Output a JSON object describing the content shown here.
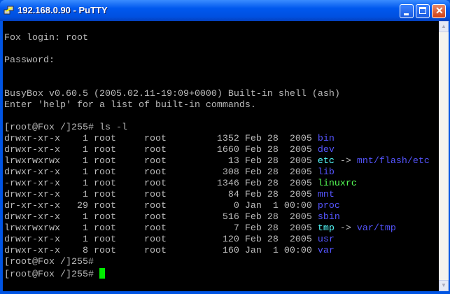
{
  "window": {
    "title": "192.168.0.90 - PuTTY",
    "icon": "putty-icon"
  },
  "colors": {
    "default": "#bbbbbb",
    "directory": "#5555ff",
    "symlink": "#55ffff",
    "executable": "#55ff55",
    "cursor": "#00ee00"
  },
  "terminal": {
    "lines": [
      [],
      [
        {
          "t": "Fox login: root"
        }
      ],
      [],
      [
        {
          "t": "Password:"
        }
      ],
      [],
      [],
      [
        {
          "t": "BusyBox v0.60.5 (2005.02.11-19:09+0000) Built-in shell (ash)"
        }
      ],
      [
        {
          "t": "Enter 'help' for a list of built-in commands."
        }
      ],
      [],
      [
        {
          "t": "[root@Fox /]255# ls -l"
        }
      ],
      [
        {
          "t": "drwxr-xr-x    1 root     root         1352 Feb 28  2005 "
        },
        {
          "t": "bin",
          "c": "directory"
        }
      ],
      [
        {
          "t": "drwxr-xr-x    1 root     root         1660 Feb 28  2005 "
        },
        {
          "t": "dev",
          "c": "directory"
        }
      ],
      [
        {
          "t": "lrwxrwxrwx    1 root     root           13 Feb 28  2005 "
        },
        {
          "t": "etc",
          "c": "symlink"
        },
        {
          "t": " -> "
        },
        {
          "t": "mnt/flash/etc",
          "c": "directory"
        }
      ],
      [
        {
          "t": "drwxr-xr-x    1 root     root          308 Feb 28  2005 "
        },
        {
          "t": "lib",
          "c": "directory"
        }
      ],
      [
        {
          "t": "-rwxr-xr-x    1 root     root         1346 Feb 28  2005 "
        },
        {
          "t": "linuxrc",
          "c": "executable"
        }
      ],
      [
        {
          "t": "drwxr-xr-x    1 root     root           84 Feb 28  2005 "
        },
        {
          "t": "mnt",
          "c": "directory"
        }
      ],
      [
        {
          "t": "dr-xr-xr-x   29 root     root            0 Jan  1 00:00 "
        },
        {
          "t": "proc",
          "c": "directory"
        }
      ],
      [
        {
          "t": "drwxr-xr-x    1 root     root          516 Feb 28  2005 "
        },
        {
          "t": "sbin",
          "c": "directory"
        }
      ],
      [
        {
          "t": "lrwxrwxrwx    1 root     root            7 Feb 28  2005 "
        },
        {
          "t": "tmp",
          "c": "symlink"
        },
        {
          "t": " -> "
        },
        {
          "t": "var/tmp",
          "c": "directory"
        }
      ],
      [
        {
          "t": "drwxr-xr-x    1 root     root          120 Feb 28  2005 "
        },
        {
          "t": "usr",
          "c": "directory"
        }
      ],
      [
        {
          "t": "drwxr-xr-x    8 root     root          160 Jan  1 00:00 "
        },
        {
          "t": "var",
          "c": "directory"
        }
      ],
      [
        {
          "t": "[root@Fox /]255#"
        }
      ],
      [
        {
          "t": "[root@Fox /]255# "
        },
        {
          "cursor": true
        }
      ]
    ]
  }
}
